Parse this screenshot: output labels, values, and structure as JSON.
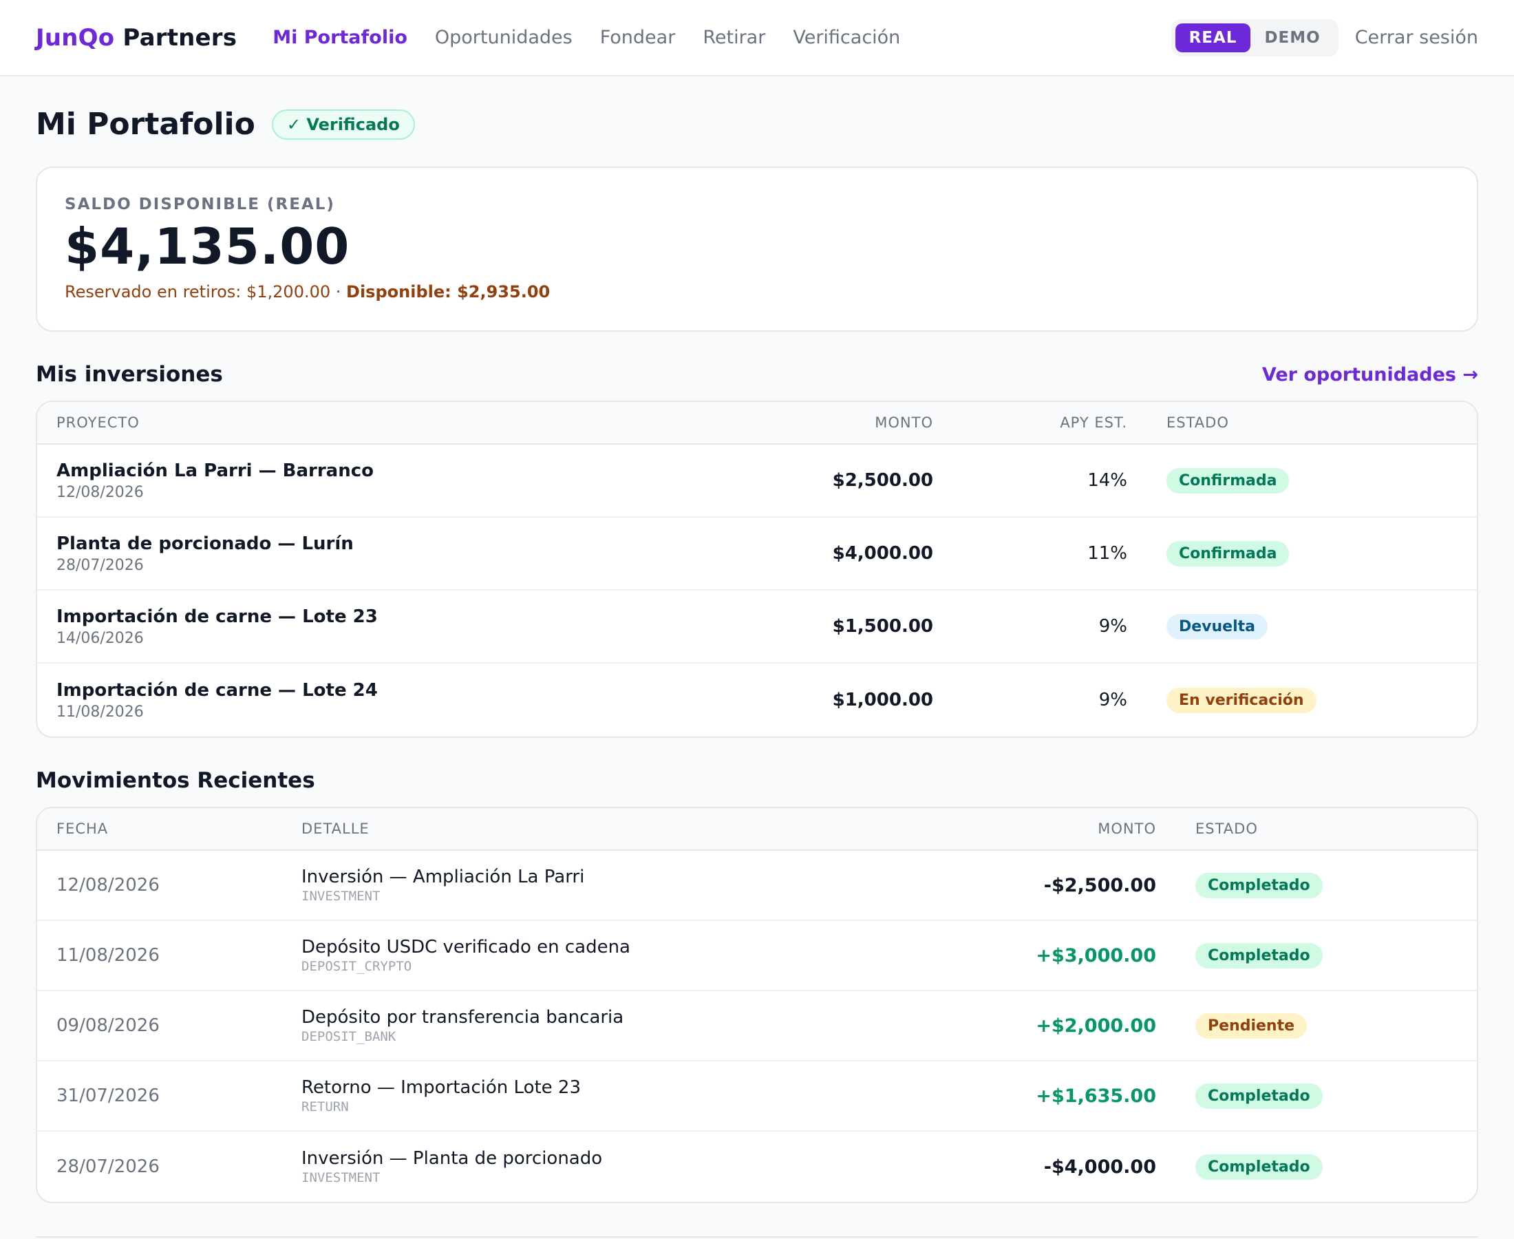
{
  "header": {
    "brand_primary": "JunQo",
    "brand_secondary": "Partners",
    "nav": [
      {
        "label": "Mi Portafolio",
        "active": true
      },
      {
        "label": "Oportunidades",
        "active": false
      },
      {
        "label": "Fondear",
        "active": false
      },
      {
        "label": "Retirar",
        "active": false
      },
      {
        "label": "Verificación",
        "active": false
      }
    ],
    "mode_real": "REAL",
    "mode_demo": "DEMO",
    "mode_selected": "REAL",
    "logout": "Cerrar sesión"
  },
  "page": {
    "title": "Mi Portafolio",
    "badge": "✓ Verificado"
  },
  "balance": {
    "label": "SALDO DISPONIBLE (REAL)",
    "amount": "$4,135.00",
    "reserved": "Reservado en retiros: $1,200.00 · ",
    "available": "Disponible: $2,935.00"
  },
  "investments": {
    "title": "Mis inversiones",
    "link": "Ver oportunidades →",
    "columns": {
      "project": "PROYECTO",
      "amount": "MONTO",
      "apy": "APY EST.",
      "status": "ESTADO"
    },
    "rows": [
      {
        "name": "Ampliación La Parri — Barranco",
        "date": "12/08/2026",
        "amount": "$2,500.00",
        "apy": "14%",
        "status": "Confirmada",
        "tone": "green"
      },
      {
        "name": "Planta de porcionado — Lurín",
        "date": "28/07/2026",
        "amount": "$4,000.00",
        "apy": "11%",
        "status": "Confirmada",
        "tone": "green"
      },
      {
        "name": "Importación de carne — Lote 23",
        "date": "14/06/2026",
        "amount": "$1,500.00",
        "apy": "9%",
        "status": "Devuelta",
        "tone": "blue"
      },
      {
        "name": "Importación de carne — Lote 24",
        "date": "11/08/2026",
        "amount": "$1,000.00",
        "apy": "9%",
        "status": "En verificación",
        "tone": "amber"
      }
    ]
  },
  "movements": {
    "title": "Movimientos Recientes",
    "columns": {
      "date": "FECHA",
      "detail": "DETALLE",
      "amount": "MONTO",
      "status": "ESTADO"
    },
    "rows": [
      {
        "date": "12/08/2026",
        "detail": "Inversión — Ampliación La Parri",
        "code": "INVESTMENT",
        "amount": "-$2,500.00",
        "sign": "neg",
        "status": "Completado",
        "tone": "green"
      },
      {
        "date": "11/08/2026",
        "detail": "Depósito USDC verificado en cadena",
        "code": "DEPOSIT_CRYPTO",
        "amount": "+$3,000.00",
        "sign": "pos",
        "status": "Completado",
        "tone": "green"
      },
      {
        "date": "09/08/2026",
        "detail": "Depósito por transferencia bancaria",
        "code": "DEPOSIT_BANK",
        "amount": "+$2,000.00",
        "sign": "pos",
        "status": "Pendiente",
        "tone": "amber"
      },
      {
        "date": "31/07/2026",
        "detail": "Retorno — Importación Lote 23",
        "code": "RETURN",
        "amount": "+$1,635.00",
        "sign": "pos",
        "status": "Completado",
        "tone": "green"
      },
      {
        "date": "28/07/2026",
        "detail": "Inversión — Planta de porcionado",
        "code": "INVESTMENT",
        "amount": "-$4,000.00",
        "sign": "neg",
        "status": "Completado",
        "tone": "green"
      }
    ]
  },
  "colors": {
    "accent": "#6d28d9",
    "success": "#059669",
    "warning": "#92400e",
    "info": "#075985"
  }
}
